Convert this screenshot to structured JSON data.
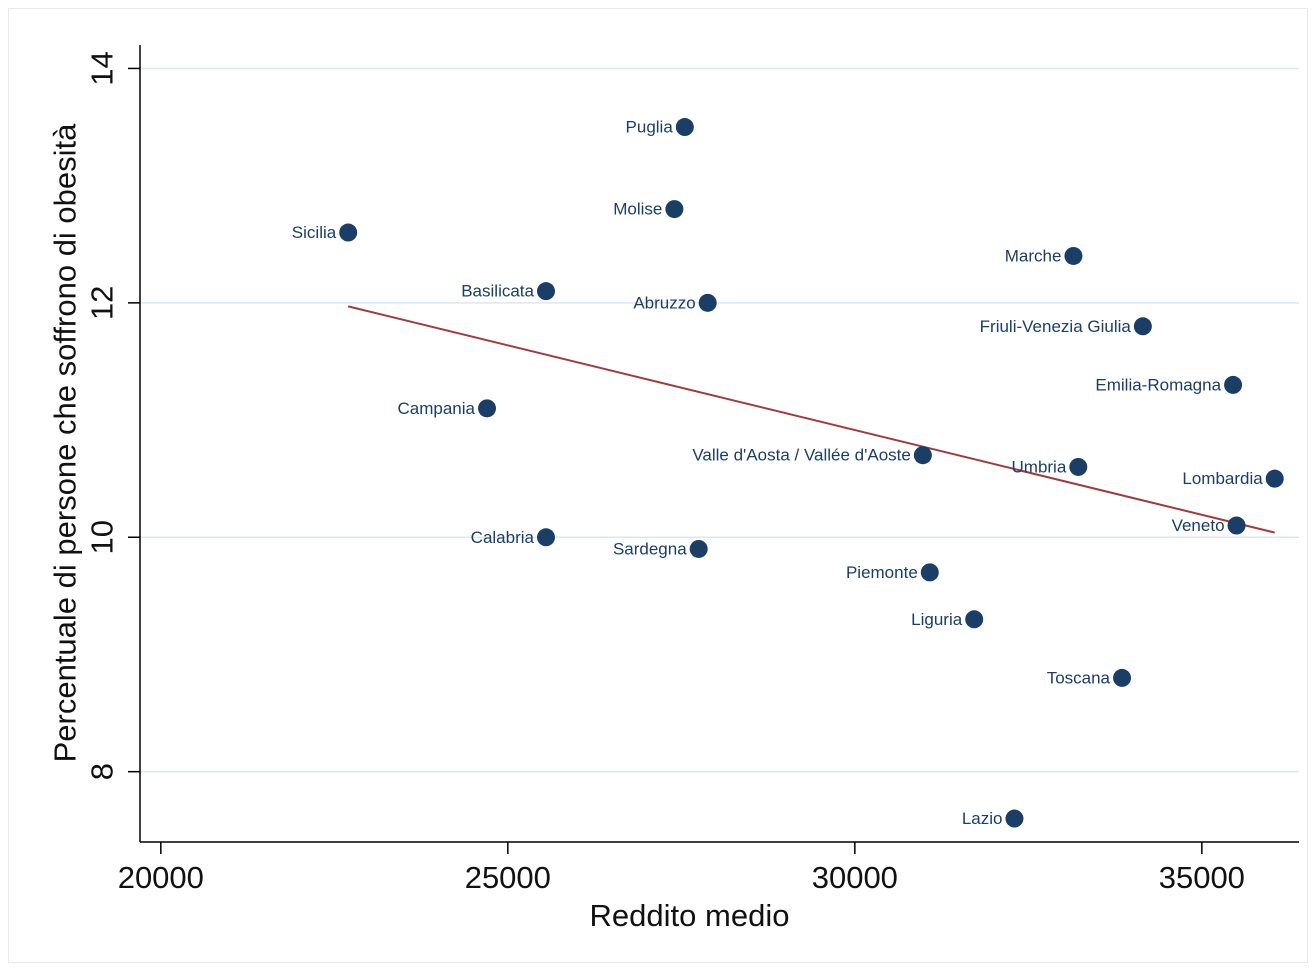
{
  "chart_data": {
    "type": "scatter",
    "xlabel": "Reddito medio",
    "ylabel": "Percentuale di persone che soffrono di obesità",
    "xlim": [
      19700,
      36400
    ],
    "ylim": [
      7.4,
      14.2
    ],
    "x_ticks": [
      "20000",
      "25000",
      "30000",
      "35000"
    ],
    "y_ticks": [
      "8",
      "10",
      "12",
      "14"
    ],
    "grid": true,
    "legend": "none",
    "colors": {
      "points": "#1a3e66",
      "fit_line": "#a33a3a",
      "grid": "#dde7ed",
      "axis": "#000000"
    },
    "points": [
      {
        "name": "Puglia",
        "x": 27550,
        "y": 13.5,
        "label_side": "left"
      },
      {
        "name": "Molise",
        "x": 27400,
        "y": 12.8,
        "label_side": "left"
      },
      {
        "name": "Sicilia",
        "x": 22700,
        "y": 12.6,
        "label_side": "left"
      },
      {
        "name": "Marche",
        "x": 33150,
        "y": 12.4,
        "label_side": "left"
      },
      {
        "name": "Basilicata",
        "x": 25550,
        "y": 12.1,
        "label_side": "left"
      },
      {
        "name": "Abruzzo",
        "x": 27880,
        "y": 12.0,
        "label_side": "left"
      },
      {
        "name": "Friuli-Venezia Giulia",
        "x": 34150,
        "y": 11.8,
        "label_side": "left"
      },
      {
        "name": "Emilia-Romagna",
        "x": 35450,
        "y": 11.3,
        "label_side": "left"
      },
      {
        "name": "Campania",
        "x": 24700,
        "y": 11.1,
        "label_side": "left"
      },
      {
        "name": "Valle d'Aosta / Vallée d'Aoste",
        "x": 30980,
        "y": 10.7,
        "label_side": "left"
      },
      {
        "name": "Umbria",
        "x": 33220,
        "y": 10.6,
        "label_side": "left"
      },
      {
        "name": "Lombardia",
        "x": 36050,
        "y": 10.5,
        "label_side": "left"
      },
      {
        "name": "Veneto",
        "x": 35500,
        "y": 10.1,
        "label_side": "left"
      },
      {
        "name": "Calabria",
        "x": 25550,
        "y": 10.0,
        "label_side": "left"
      },
      {
        "name": "Sardegna",
        "x": 27750,
        "y": 9.9,
        "label_side": "left"
      },
      {
        "name": "Piemonte",
        "x": 31080,
        "y": 9.7,
        "label_side": "left"
      },
      {
        "name": "Liguria",
        "x": 31720,
        "y": 9.3,
        "label_side": "left"
      },
      {
        "name": "Toscana",
        "x": 33850,
        "y": 8.8,
        "label_side": "left"
      },
      {
        "name": "Lazio",
        "x": 32300,
        "y": 7.6,
        "label_side": "left"
      }
    ],
    "fit_line": {
      "x": [
        22700,
        36050
      ],
      "y": [
        11.97,
        10.04
      ]
    }
  }
}
